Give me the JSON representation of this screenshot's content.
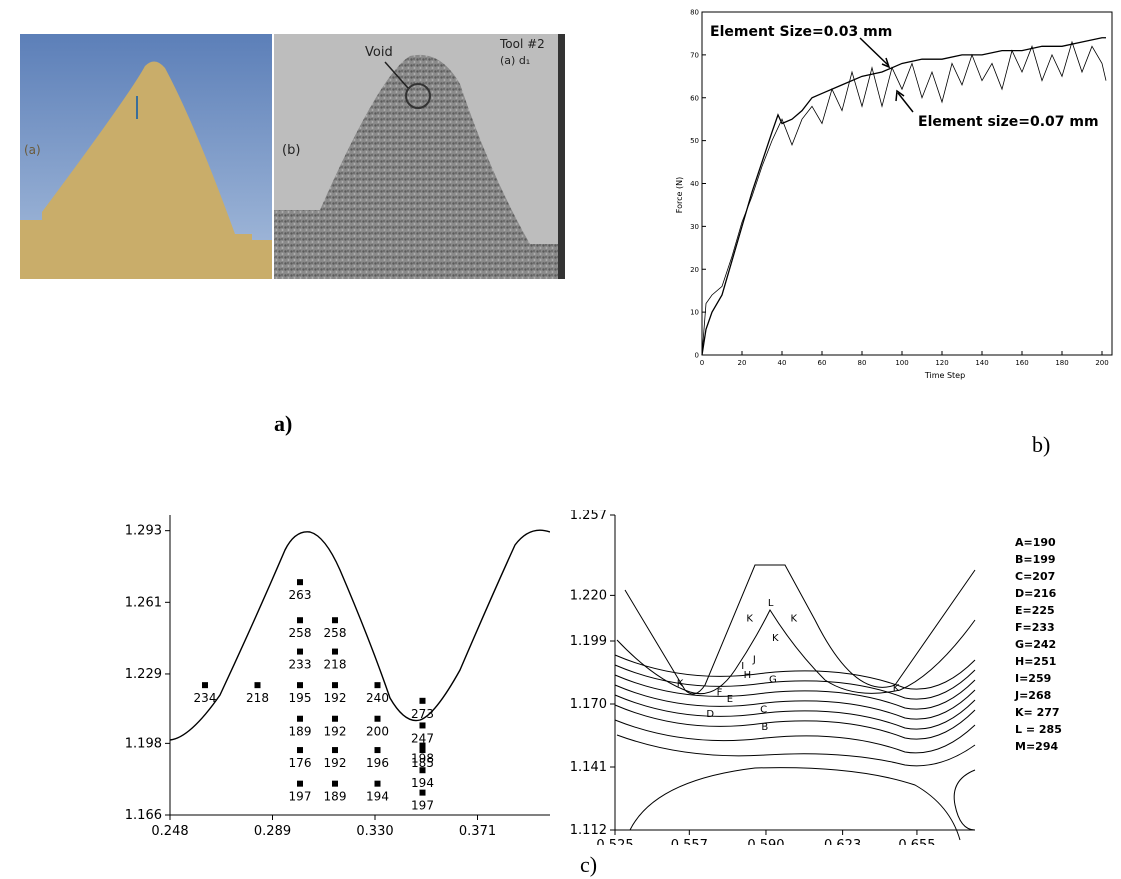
{
  "figure": {
    "label_a": "a)",
    "label_b": "b)",
    "label_c": "c)"
  },
  "photos": {
    "left_label": "(a)",
    "right_label": "(b)",
    "void_label": "Void",
    "tool_label": "Tool #2",
    "tool_sub": "(a) d₁"
  },
  "chart_data": [
    {
      "type": "line",
      "xlabel": "Time Step",
      "ylabel": "Force (N)",
      "xlim": [
        0,
        205
      ],
      "ylim": [
        0,
        80
      ],
      "xticks": [
        0,
        20,
        40,
        60,
        80,
        100,
        120,
        140,
        160,
        180,
        200
      ],
      "yticks": [
        0,
        10,
        20,
        30,
        40,
        50,
        60,
        70,
        80
      ],
      "annotations": [
        "Element Size=0.03 mm",
        "Element size=0.07 mm"
      ],
      "series": [
        {
          "x": [
            0,
            2,
            5,
            10,
            15,
            20,
            25,
            30,
            35,
            38,
            40,
            45,
            50,
            55,
            60,
            70,
            80,
            90,
            100,
            110,
            120,
            130,
            140,
            150,
            160,
            170,
            180,
            190,
            200,
            202
          ],
          "y": [
            0,
            6,
            10,
            14,
            22,
            30,
            38,
            45,
            52,
            56,
            54,
            55,
            57,
            60,
            61,
            63,
            65,
            66,
            68,
            69,
            69,
            70,
            70,
            71,
            71,
            72,
            72,
            73,
            74,
            74
          ]
        },
        {
          "x": [
            0,
            2,
            5,
            10,
            15,
            20,
            25,
            30,
            35,
            40,
            45,
            50,
            55,
            60,
            65,
            70,
            75,
            80,
            85,
            90,
            95,
            100,
            105,
            110,
            115,
            120,
            125,
            130,
            135,
            140,
            145,
            150,
            155,
            160,
            165,
            170,
            175,
            180,
            185,
            190,
            195,
            200,
            202
          ],
          "y": [
            0,
            12,
            14,
            16,
            23,
            31,
            37,
            44,
            50,
            55,
            49,
            55,
            58,
            54,
            62,
            57,
            66,
            58,
            67,
            58,
            67,
            62,
            68,
            60,
            66,
            59,
            68,
            63,
            70,
            64,
            68,
            62,
            71,
            66,
            72,
            64,
            70,
            65,
            73,
            66,
            72,
            68,
            64
          ]
        }
      ]
    },
    {
      "type": "scatter",
      "xticks": [
        "0.248",
        "0.289",
        "0.330",
        "0.371"
      ],
      "yticks": [
        "1.166",
        "1.198",
        "1.229",
        "1.261",
        "1.293"
      ],
      "xlim": [
        0.248,
        0.4
      ],
      "ylim": [
        1.166,
        1.3
      ],
      "points": [
        {
          "x": 0.3,
          "y": 1.27,
          "label": "263"
        },
        {
          "x": 0.3,
          "y": 1.253,
          "label": "258"
        },
        {
          "x": 0.314,
          "y": 1.253,
          "label": "258"
        },
        {
          "x": 0.3,
          "y": 1.239,
          "label": "233"
        },
        {
          "x": 0.314,
          "y": 1.239,
          "label": "218"
        },
        {
          "x": 0.262,
          "y": 1.224,
          "label": "234"
        },
        {
          "x": 0.283,
          "y": 1.224,
          "label": "218"
        },
        {
          "x": 0.3,
          "y": 1.224,
          "label": "195"
        },
        {
          "x": 0.314,
          "y": 1.224,
          "label": "192"
        },
        {
          "x": 0.331,
          "y": 1.224,
          "label": "240"
        },
        {
          "x": 0.349,
          "y": 1.217,
          "label": "273"
        },
        {
          "x": 0.3,
          "y": 1.209,
          "label": "189"
        },
        {
          "x": 0.314,
          "y": 1.209,
          "label": "192"
        },
        {
          "x": 0.331,
          "y": 1.209,
          "label": "200"
        },
        {
          "x": 0.349,
          "y": 1.206,
          "label": "247"
        },
        {
          "x": 0.349,
          "y": 1.197,
          "label": "198"
        },
        {
          "x": 0.3,
          "y": 1.195,
          "label": "176"
        },
        {
          "x": 0.314,
          "y": 1.195,
          "label": "192"
        },
        {
          "x": 0.331,
          "y": 1.195,
          "label": "196"
        },
        {
          "x": 0.349,
          "y": 1.195,
          "label": "185"
        },
        {
          "x": 0.349,
          "y": 1.186,
          "label": "194"
        },
        {
          "x": 0.3,
          "y": 1.18,
          "label": "197"
        },
        {
          "x": 0.314,
          "y": 1.18,
          "label": "189"
        },
        {
          "x": 0.331,
          "y": 1.18,
          "label": "194"
        },
        {
          "x": 0.349,
          "y": 1.176,
          "label": "197"
        }
      ]
    },
    {
      "type": "line",
      "xticks": [
        "0.525",
        "0.557",
        "0.590",
        "0.623",
        "0.655"
      ],
      "yticks": [
        "1.112",
        "1.141",
        "1.170",
        "1.199",
        "1.220",
        "1.257"
      ],
      "xlim": [
        0.525,
        0.68
      ],
      "ylim": [
        1.112,
        1.257
      ],
      "legend": [
        "A=190",
        "B=199",
        "C=207",
        "D=216",
        "E=225",
        "F=233",
        "G=242",
        "H=251",
        "I=259",
        "J=268",
        "K= 277",
        "L = 285",
        "M=294"
      ],
      "contour_labels": [
        {
          "x": 0.5895,
          "y": 1.158,
          "label": "B"
        },
        {
          "x": 0.589,
          "y": 1.166,
          "label": "C"
        },
        {
          "x": 0.566,
          "y": 1.164,
          "label": "D"
        },
        {
          "x": 0.5745,
          "y": 1.171,
          "label": "E"
        },
        {
          "x": 0.57,
          "y": 1.174,
          "label": "F"
        },
        {
          "x": 0.593,
          "y": 1.18,
          "label": "G"
        },
        {
          "x": 0.582,
          "y": 1.182,
          "label": "H"
        },
        {
          "x": 0.58,
          "y": 1.186,
          "label": "I"
        },
        {
          "x": 0.585,
          "y": 1.189,
          "label": "J"
        },
        {
          "x": 0.594,
          "y": 1.199,
          "label": "K"
        },
        {
          "x": 0.553,
          "y": 1.178,
          "label": "K"
        },
        {
          "x": 0.646,
          "y": 1.176,
          "label": "K"
        },
        {
          "x": 0.583,
          "y": 1.208,
          "label": "K"
        },
        {
          "x": 0.602,
          "y": 1.208,
          "label": "K"
        },
        {
          "x": 0.592,
          "y": 1.215,
          "label": "L"
        }
      ]
    }
  ]
}
